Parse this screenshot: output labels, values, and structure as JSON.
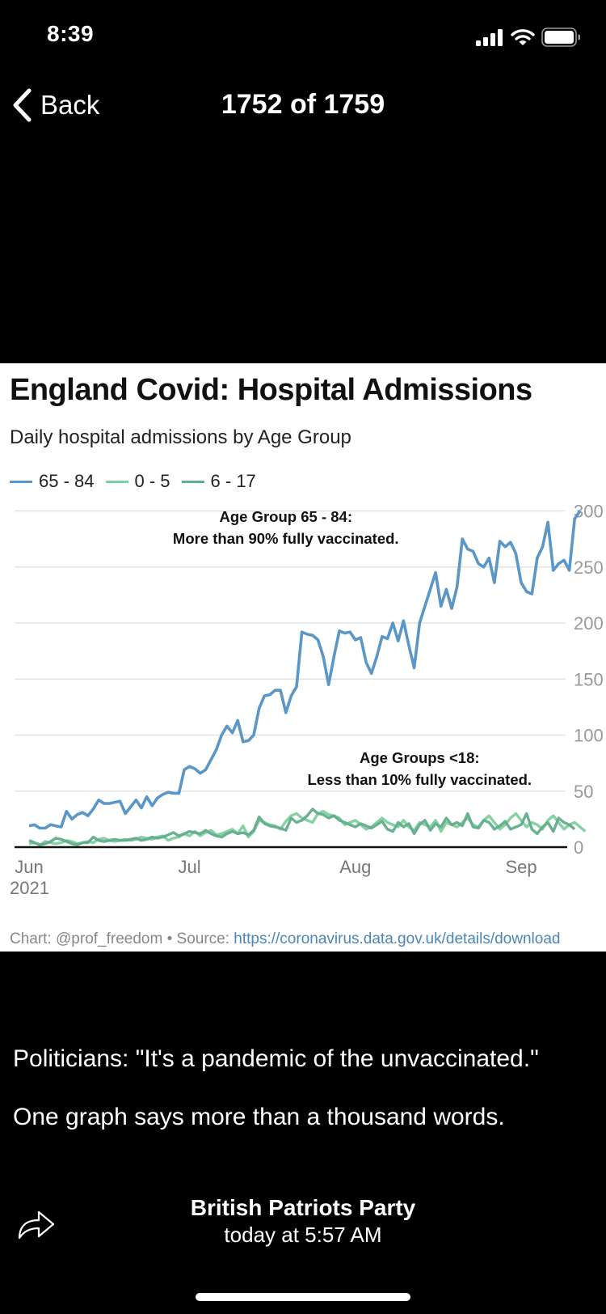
{
  "status_bar": {
    "time": "8:39",
    "icons": [
      "cellular-signal-icon",
      "wifi-icon",
      "battery-icon"
    ]
  },
  "nav": {
    "back_label": "Back",
    "back_icon": "chevron-left-icon",
    "title": "1752 of 1759"
  },
  "post": {
    "caption_line1": "Politicians: \"It's a pandemic of the unvaccinated.\"",
    "caption_line2": "One graph says more than a thousand words.",
    "author": "British Patriots Party",
    "timestamp": "today at 5:57 AM",
    "share_icon": "share-arrow-icon"
  },
  "chart": {
    "footer_prefix": "Chart: @prof_freedom • Source: ",
    "footer_link": "https://coronavirus.data.gov.uk/details/download"
  },
  "chart_data": {
    "type": "line",
    "title": "England Covid: Hospital Admissions",
    "subtitle": "Daily hospital admissions by Age Group",
    "xlabel": "",
    "ylabel": "",
    "x_start": "2021-06-01",
    "x_ticks": [
      "Jun",
      "Jul",
      "Aug",
      "Sep"
    ],
    "x_tick_year": "2021",
    "x_tick_days": [
      0,
      30,
      61,
      92
    ],
    "y_ticks": [
      0,
      50,
      100,
      150,
      200,
      250,
      300
    ],
    "ylim": [
      0,
      300
    ],
    "y_axis_side": "right",
    "grid": true,
    "legend_position": "top-left",
    "annotations": [
      {
        "lines": [
          "Age Group 65 - 84:",
          "More than 90% fully vaccinated."
        ],
        "near_value": 280,
        "near_day": 48
      },
      {
        "lines": [
          "Age Groups <18:",
          "Less than 10% fully vaccinated."
        ],
        "near_value": 65,
        "near_day": 73
      }
    ],
    "series": [
      {
        "name": "65 - 84",
        "color": "#5b97c6",
        "values": [
          19,
          20,
          17,
          17,
          20,
          19,
          18,
          32,
          25,
          29,
          31,
          28,
          34,
          42,
          39,
          39,
          40,
          41,
          30,
          36,
          42,
          35,
          45,
          37,
          44,
          47,
          49,
          48,
          48,
          69,
          72,
          70,
          66,
          69,
          78,
          87,
          100,
          108,
          102,
          113,
          94,
          95,
          100,
          124,
          135,
          136,
          140,
          140,
          120,
          135,
          143,
          192,
          190,
          189,
          185,
          170,
          145,
          170,
          193,
          191,
          192,
          185,
          187,
          165,
          155,
          170,
          188,
          186,
          200,
          184,
          202,
          180,
          160,
          200,
          215,
          230,
          245,
          215,
          230,
          213,
          232,
          275,
          266,
          264,
          253,
          250,
          258,
          236,
          273,
          268,
          272,
          262,
          236,
          228,
          226,
          258,
          268,
          290,
          247,
          253,
          256,
          247,
          293,
          300
        ]
      },
      {
        "name": "0 - 5",
        "color": "#7fd09e",
        "values": [
          3,
          4,
          2,
          5,
          4,
          3,
          4,
          6,
          5,
          3,
          4,
          5,
          4,
          7,
          8,
          6,
          5,
          6,
          7,
          6,
          7,
          9,
          8,
          7,
          9,
          10,
          6,
          8,
          9,
          12,
          10,
          14,
          10,
          13,
          15,
          11,
          12,
          14,
          16,
          12,
          19,
          9,
          14,
          24,
          22,
          20,
          19,
          16,
          23,
          28,
          30,
          26,
          24,
          22,
          30,
          32,
          29,
          28,
          26,
          20,
          22,
          24,
          20,
          16,
          18,
          22,
          26,
          22,
          20,
          18,
          24,
          18,
          15,
          22,
          20,
          18,
          24,
          14,
          22,
          20,
          18,
          22,
          26,
          20,
          18,
          24,
          28,
          22,
          16,
          20,
          26,
          30,
          24,
          18,
          22,
          20,
          16,
          24,
          28,
          22,
          16,
          20,
          22,
          18,
          14
        ]
      },
      {
        "name": "6 - 17",
        "color": "#62ad8c",
        "values": [
          6,
          4,
          2,
          3,
          5,
          8,
          7,
          5,
          3,
          2,
          4,
          4,
          9,
          6,
          5,
          6,
          7,
          6,
          6,
          7,
          8,
          6,
          7,
          9,
          8,
          9,
          11,
          13,
          10,
          12,
          14,
          13,
          12,
          15,
          12,
          10,
          9,
          12,
          14,
          12,
          13,
          11,
          15,
          27,
          21,
          19,
          18,
          17,
          15,
          26,
          22,
          24,
          28,
          34,
          30,
          29,
          26,
          28,
          24,
          22,
          20,
          18,
          21,
          19,
          17,
          20,
          23,
          16,
          14,
          22,
          18,
          21,
          12,
          20,
          24,
          15,
          21,
          18,
          26,
          20,
          22,
          19,
          30,
          18,
          17,
          24,
          22,
          16,
          19,
          23,
          16,
          18,
          20,
          30,
          16,
          12,
          18,
          22,
          14,
          26,
          22,
          20,
          16
        ]
      }
    ]
  }
}
